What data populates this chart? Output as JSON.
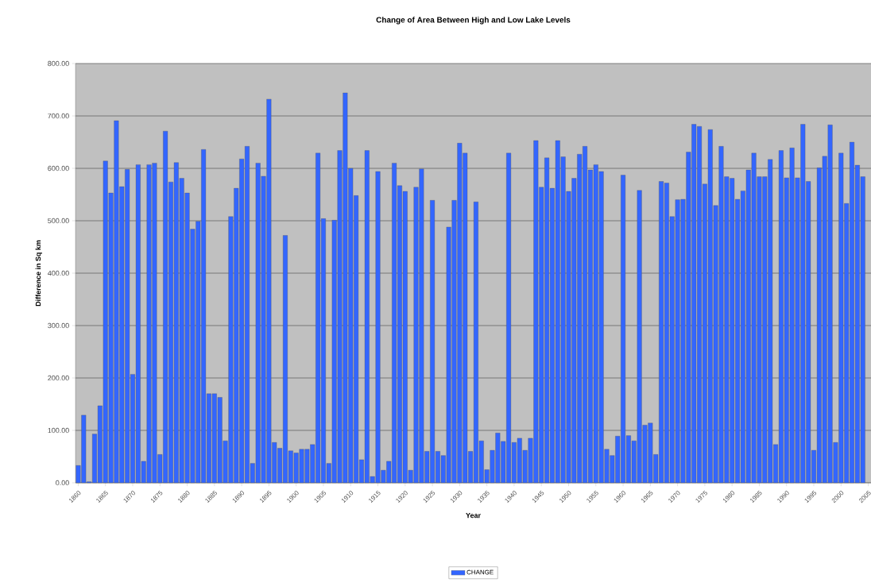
{
  "chart_data": {
    "type": "bar",
    "title": "Change of Area Between High and Low Lake Levels",
    "xlabel": "Year",
    "ylabel": "Difference in Sq km",
    "x": [
      1860,
      1861,
      1862,
      1863,
      1864,
      1865,
      1866,
      1867,
      1868,
      1869,
      1870,
      1871,
      1872,
      1873,
      1874,
      1875,
      1876,
      1877,
      1878,
      1879,
      1880,
      1881,
      1882,
      1883,
      1884,
      1885,
      1886,
      1887,
      1888,
      1889,
      1890,
      1891,
      1892,
      1893,
      1894,
      1895,
      1896,
      1897,
      1898,
      1899,
      1900,
      1901,
      1902,
      1903,
      1904,
      1905,
      1906,
      1907,
      1908,
      1909,
      1910,
      1911,
      1912,
      1913,
      1914,
      1915,
      1916,
      1917,
      1918,
      1919,
      1920,
      1921,
      1922,
      1923,
      1924,
      1925,
      1926,
      1927,
      1928,
      1929,
      1930,
      1931,
      1932,
      1933,
      1934,
      1935,
      1936,
      1937,
      1938,
      1939,
      1940,
      1941,
      1942,
      1943,
      1944,
      1945,
      1946,
      1947,
      1948,
      1949,
      1950,
      1951,
      1952,
      1953,
      1954,
      1955,
      1956,
      1957,
      1958,
      1959,
      1960,
      1961,
      1962,
      1963,
      1964,
      1965,
      1966,
      1967,
      1968,
      1969,
      1970,
      1971,
      1972,
      1973,
      1974,
      1975,
      1976,
      1977,
      1978,
      1979,
      1980,
      1981,
      1982,
      1983,
      1984,
      1985,
      1986,
      1987,
      1988,
      1989,
      1990,
      1991,
      1992,
      1993,
      1994,
      1995,
      1996,
      1997,
      1998,
      1999,
      2000,
      2001,
      2002,
      2003,
      2004
    ],
    "series": [
      {
        "name": "CHANGE",
        "color": "#3366ff",
        "values": [
          33,
          129,
          2,
          93,
          147,
          614,
          553,
          691,
          565,
          598,
          207,
          607,
          41,
          607,
          610,
          54,
          671,
          574,
          611,
          581,
          553,
          484,
          499,
          636,
          170,
          170,
          163,
          80,
          508,
          562,
          618,
          642,
          37,
          610,
          585,
          732,
          77,
          66,
          472,
          61,
          57,
          64,
          64,
          73,
          629,
          504,
          37,
          501,
          634,
          744,
          600,
          548,
          44,
          634,
          12,
          594,
          24,
          41,
          610,
          567,
          556,
          24,
          564,
          599,
          60,
          539,
          60,
          52,
          488,
          539,
          648,
          629,
          60,
          536,
          80,
          25,
          62,
          95,
          79,
          629,
          77,
          85,
          62,
          85,
          653,
          564,
          620,
          562,
          653,
          622,
          556,
          581,
          627,
          642,
          597,
          607,
          594,
          64,
          52,
          89,
          587,
          90,
          80,
          558,
          110,
          114,
          54,
          575,
          572,
          508,
          540,
          541,
          631,
          684,
          680,
          570,
          674,
          529,
          642,
          584,
          581,
          541,
          557,
          597,
          629,
          584,
          584,
          617,
          73,
          634,
          582,
          639,
          582,
          684,
          575,
          62,
          601,
          623,
          683,
          77,
          629,
          533,
          650,
          606,
          584
        ]
      }
    ],
    "xlim": [
      1859.5,
      2005.5
    ],
    "xticks": [
      1860,
      1865,
      1870,
      1875,
      1880,
      1885,
      1890,
      1895,
      1900,
      1905,
      1910,
      1915,
      1920,
      1925,
      1930,
      1935,
      1940,
      1945,
      1950,
      1955,
      1960,
      1965,
      1970,
      1975,
      1980,
      1985,
      1990,
      1995,
      2000,
      2005
    ],
    "ylim": [
      0,
      800
    ],
    "yticks": [
      {
        "value": 0,
        "label": "0.00"
      },
      {
        "value": 100,
        "label": "100.00"
      },
      {
        "value": 200,
        "label": "200.00"
      },
      {
        "value": 300,
        "label": "300.00"
      },
      {
        "value": 400,
        "label": "400.00"
      },
      {
        "value": 500,
        "label": "500.00"
      },
      {
        "value": 600,
        "label": "600.00"
      },
      {
        "value": 700,
        "label": "700.00"
      },
      {
        "value": 800,
        "label": "800.00"
      }
    ],
    "grid": "y",
    "legend": "bottom"
  }
}
